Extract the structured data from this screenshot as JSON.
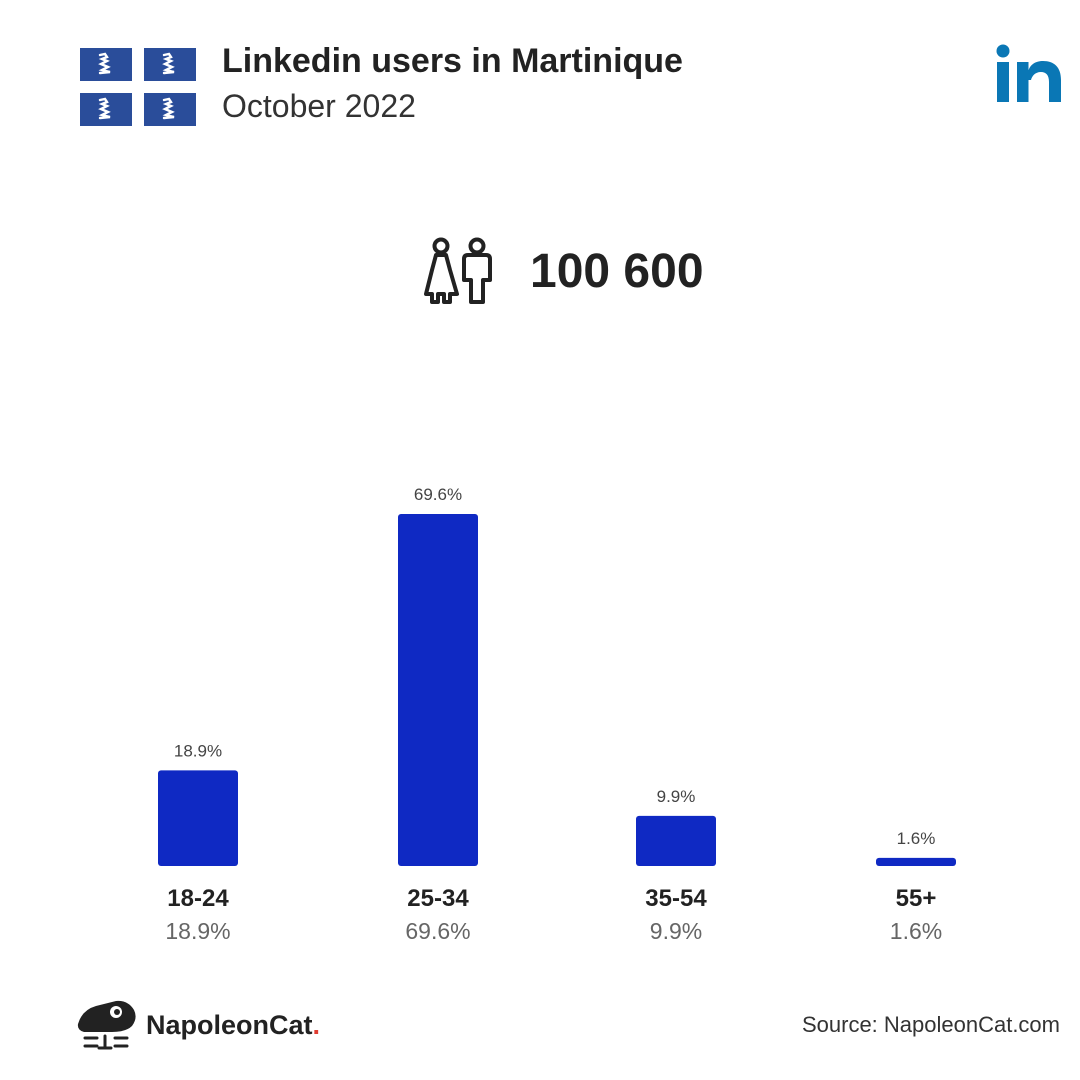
{
  "header": {
    "title": "Linkedin users in Martinique",
    "subtitle": "October 2022"
  },
  "summary": {
    "total_users": "100 600",
    "icon": "people-icon"
  },
  "icons": {
    "flag": "martinique-flag-icon",
    "platform_logo": "linkedin-logo",
    "brand_logo": "napoleoncat-icon"
  },
  "colors": {
    "bar": "#0f29c3",
    "linkedin": "#0a77b5",
    "flag_blue": "#2a4d9a",
    "text": "#222222",
    "brand_dot": "#e03c31"
  },
  "chart_data": {
    "type": "bar",
    "categories": [
      "18-24",
      "25-34",
      "35-54",
      "55+"
    ],
    "values": [
      18.9,
      69.6,
      9.9,
      1.6
    ],
    "value_labels": [
      "18.9%",
      "69.6%",
      "9.9%",
      "1.6%"
    ],
    "title": "",
    "xlabel": "",
    "ylabel": "",
    "ylim": [
      0,
      69.6
    ],
    "grid": false
  },
  "footer": {
    "brand_name": "NapoleonCat",
    "brand_dot": ".",
    "source": "Source: NapoleonCat.com"
  }
}
